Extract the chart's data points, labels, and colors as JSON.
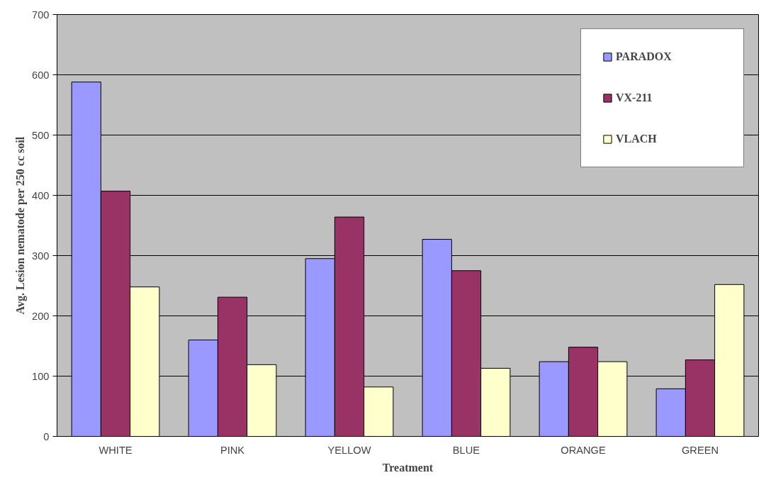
{
  "chart_data": {
    "type": "bar",
    "xlabel": "Treatment",
    "ylabel": "Avg. Lesion nematode per 250 cc soil",
    "categories": [
      "WHITE",
      "PINK",
      "YELLOW",
      "BLUE",
      "ORANGE",
      "GREEN"
    ],
    "series": [
      {
        "name": "PARADOX",
        "color": "#9999ff",
        "values": [
          588,
          160,
          295,
          327,
          124,
          79
        ]
      },
      {
        "name": "VX-211",
        "color": "#993366",
        "values": [
          407,
          231,
          364,
          275,
          148,
          127
        ]
      },
      {
        "name": "VLACH",
        "color": "#ffffcc",
        "values": [
          248,
          119,
          82,
          113,
          124,
          252
        ]
      }
    ],
    "ylim": [
      0,
      700
    ],
    "yticks": [
      0,
      100,
      200,
      300,
      400,
      500,
      600,
      700
    ],
    "grid": "y",
    "legend": "top right"
  }
}
